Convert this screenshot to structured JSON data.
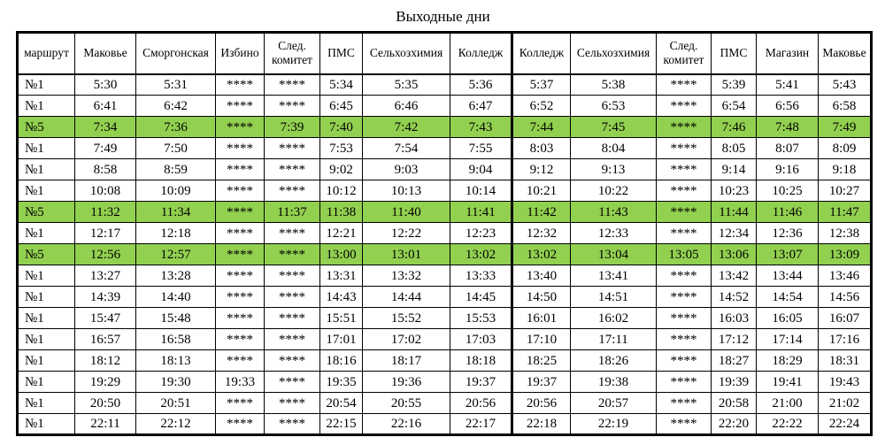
{
  "title": "Выходные дни",
  "colors": {
    "highlight_green": "#92D050",
    "border": "#000000",
    "background": "#FFFFFF",
    "text": "#000000"
  },
  "table": {
    "columns": [
      "маршрут",
      "Маковье",
      "Сморгонская",
      "Избино",
      "След. комитет",
      "ПМС",
      "Сельхозхимия",
      "Колледж",
      "Колледж",
      "Сельхозхимия",
      "След. комитет",
      "ПМС",
      "Магазин",
      "Маковье"
    ],
    "rows": [
      {
        "route": "№1",
        "highlighted": false,
        "times": [
          "5:30",
          "5:31",
          "****",
          "****",
          "5:34",
          "5:35",
          "5:36",
          "5:37",
          "5:38",
          "****",
          "5:39",
          "5:41",
          "5:43"
        ]
      },
      {
        "route": "№1",
        "highlighted": false,
        "times": [
          "6:41",
          "6:42",
          "****",
          "****",
          "6:45",
          "6:46",
          "6:47",
          "6:52",
          "6:53",
          "****",
          "6:54",
          "6:56",
          "6:58"
        ]
      },
      {
        "route": "№5",
        "highlighted": true,
        "times": [
          "7:34",
          "7:36",
          "****",
          "7:39",
          "7:40",
          "7:42",
          "7:43",
          "7:44",
          "7:45",
          "****",
          "7:46",
          "7:48",
          "7:49"
        ]
      },
      {
        "route": "№1",
        "highlighted": false,
        "times": [
          "7:49",
          "7:50",
          "****",
          "****",
          "7:53",
          "7:54",
          "7:55",
          "8:03",
          "8:04",
          "****",
          "8:05",
          "8:07",
          "8:09"
        ]
      },
      {
        "route": "№1",
        "highlighted": false,
        "times": [
          "8:58",
          "8:59",
          "****",
          "****",
          "9:02",
          "9:03",
          "9:04",
          "9:12",
          "9:13",
          "****",
          "9:14",
          "9:16",
          "9:18"
        ]
      },
      {
        "route": "№1",
        "highlighted": false,
        "times": [
          "10:08",
          "10:09",
          "****",
          "****",
          "10:12",
          "10:13",
          "10:14",
          "10:21",
          "10:22",
          "****",
          "10:23",
          "10:25",
          "10:27"
        ]
      },
      {
        "route": "№5",
        "highlighted": true,
        "times": [
          "11:32",
          "11:34",
          "****",
          "11:37",
          "11:38",
          "11:40",
          "11:41",
          "11:42",
          "11:43",
          "****",
          "11:44",
          "11:46",
          "11:47"
        ]
      },
      {
        "route": "№1",
        "highlighted": false,
        "times": [
          "12:17",
          "12:18",
          "****",
          "****",
          "12:21",
          "12:22",
          "12:23",
          "12:32",
          "12:33",
          "****",
          "12:34",
          "12:36",
          "12:38"
        ]
      },
      {
        "route": "№5",
        "highlighted": true,
        "times": [
          "12:56",
          "12:57",
          "****",
          "****",
          "13:00",
          "13:01",
          "13:02",
          "13:02",
          "13:04",
          "13:05",
          "13:06",
          "13:07",
          "13:09"
        ]
      },
      {
        "route": "№1",
        "highlighted": false,
        "times": [
          "13:27",
          "13:28",
          "****",
          "****",
          "13:31",
          "13:32",
          "13:33",
          "13:40",
          "13:41",
          "****",
          "13:42",
          "13:44",
          "13:46"
        ]
      },
      {
        "route": "№1",
        "highlighted": false,
        "times": [
          "14:39",
          "14:40",
          "****",
          "****",
          "14:43",
          "14:44",
          "14:45",
          "14:50",
          "14:51",
          "****",
          "14:52",
          "14:54",
          "14:56"
        ]
      },
      {
        "route": "№1",
        "highlighted": false,
        "times": [
          "15:47",
          "15:48",
          "****",
          "****",
          "15:51",
          "15:52",
          "15:53",
          "16:01",
          "16:02",
          "****",
          "16:03",
          "16:05",
          "16:07"
        ]
      },
      {
        "route": "№1",
        "highlighted": false,
        "times": [
          "16:57",
          "16:58",
          "****",
          "****",
          "17:01",
          "17:02",
          "17:03",
          "17:10",
          "17:11",
          "****",
          "17:12",
          "17:14",
          "17:16"
        ]
      },
      {
        "route": "№1",
        "highlighted": false,
        "times": [
          "18:12",
          "18:13",
          "****",
          "****",
          "18:16",
          "18:17",
          "18:18",
          "18:25",
          "18:26",
          "****",
          "18:27",
          "18:29",
          "18:31"
        ]
      },
      {
        "route": "№1",
        "highlighted": false,
        "times": [
          "19:29",
          "19:30",
          "19:33",
          "****",
          "19:35",
          "19:36",
          "19:37",
          "19:37",
          "19:38",
          "****",
          "19:39",
          "19:41",
          "19:43"
        ]
      },
      {
        "route": "№1",
        "highlighted": false,
        "times": [
          "20:50",
          "20:51",
          "****",
          "****",
          "20:54",
          "20:55",
          "20:56",
          "20:56",
          "20:57",
          "****",
          "20:58",
          "21:00",
          "21:02"
        ]
      },
      {
        "route": "№1",
        "highlighted": false,
        "times": [
          "22:11",
          "22:12",
          "****",
          "****",
          "22:15",
          "22:16",
          "22:17",
          "22:18",
          "22:19",
          "****",
          "22:20",
          "22:22",
          "22:24"
        ]
      }
    ]
  }
}
